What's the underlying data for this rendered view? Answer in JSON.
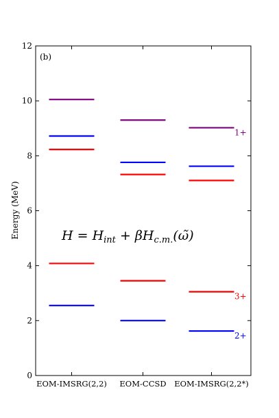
{
  "chart_data": {
    "type": "level-scheme",
    "panel_label": "(b)",
    "ylabel": "Energy (MeV)",
    "ylim": [
      0,
      12
    ],
    "yticks": [
      0,
      2,
      4,
      6,
      8,
      10,
      12
    ],
    "categories": [
      "EOM-IMSRG(2,2)",
      "EOM-CCSD",
      "EOM-IMSRG(2,2*)"
    ],
    "formula": "H = H_int + βH_c.m.(ω̃)",
    "grid": false,
    "series": [
      {
        "name": "1+",
        "color": "#800080",
        "values": [
          10.05,
          9.3,
          9.02
        ]
      },
      {
        "name": "",
        "color": "#0000ff",
        "values": [
          8.72,
          7.76,
          7.62
        ]
      },
      {
        "name": "",
        "color": "#ff0000",
        "values": [
          8.23,
          7.32,
          7.1
        ]
      },
      {
        "name": "3+",
        "color": "#ff0000",
        "values": [
          4.08,
          3.45,
          3.05
        ]
      },
      {
        "name": "2+",
        "color": "#0000ff",
        "values": [
          2.55,
          2.0,
          1.62
        ]
      }
    ]
  }
}
